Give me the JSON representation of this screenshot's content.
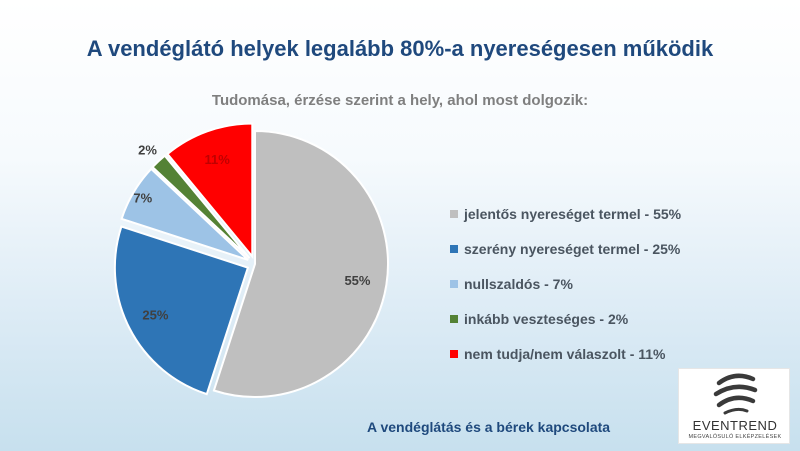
{
  "chart_data": {
    "type": "pie",
    "title": "A vendéglátó helyek legalább 80%-a nyereségesen működik",
    "subtitle": "Tudomása, érzése szerint a hely, ahol most dolgozik:",
    "slices": [
      {
        "legend": "jelentős nyereséget termel - 55%",
        "value": 55,
        "label": "55%",
        "color": "#bfbfbf",
        "label_color": "#404040",
        "exploded": false
      },
      {
        "legend": "szerény nyereséget termel - 25%",
        "value": 25,
        "label": "25%",
        "color": "#2e75b6",
        "label_color": "#404040",
        "exploded": true
      },
      {
        "legend": "nullszaldós - 7%",
        "value": 7,
        "label": "7%",
        "color": "#9dc3e6",
        "label_color": "#404040",
        "exploded": true
      },
      {
        "legend": "inkább veszteséges - 2%",
        "value": 2,
        "label": "2%",
        "color": "#548235",
        "label_color": "#404040",
        "exploded": true
      },
      {
        "legend": "nem tudja/nem válaszolt - 11%",
        "value": 11,
        "label": "11%",
        "color": "#ff0000",
        "label_color": "#c00000",
        "exploded": true
      }
    ],
    "legend_position": "right"
  },
  "footer": "A vendéglátás és a bérek kapcsolata",
  "logo": {
    "name": "EVENTREND",
    "tagline": "MEGVALÓSULÓ ELKÉPZELÉSEK",
    "icon": "eventrend-logo-icon"
  }
}
